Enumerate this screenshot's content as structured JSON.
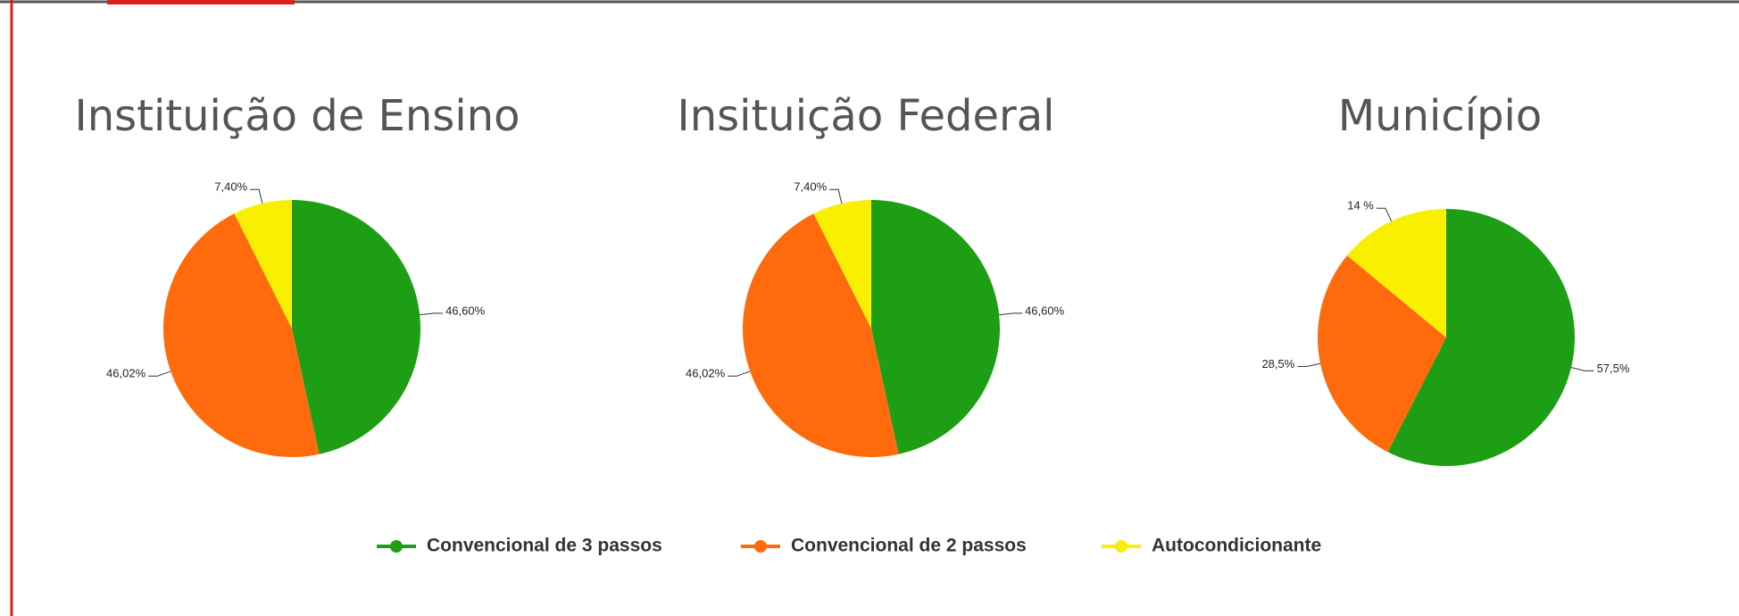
{
  "legend": {
    "items": [
      {
        "name": "Convencional de 3 passos",
        "color": "#1e9e14"
      },
      {
        "name": "Convencional de 2 passos",
        "color": "#ff6b0c"
      },
      {
        "name": "Autocondicionante",
        "color": "#f9ef00"
      }
    ]
  },
  "chart_data": [
    {
      "type": "pie",
      "title": "Instituição de Ensino",
      "values": [
        46.6,
        46.02,
        7.4
      ],
      "value_labels": [
        "46,60%",
        "46,02%",
        "7,40%"
      ]
    },
    {
      "type": "pie",
      "title": "Insituição Federal",
      "values": [
        46.6,
        46.02,
        7.4
      ],
      "value_labels": [
        "46,60%",
        "46,02%",
        "7,40%"
      ]
    },
    {
      "type": "pie",
      "title": "Município",
      "values": [
        57.5,
        28.5,
        14
      ],
      "value_labels": [
        "57,5%",
        "28,5%",
        "14 %"
      ]
    }
  ]
}
